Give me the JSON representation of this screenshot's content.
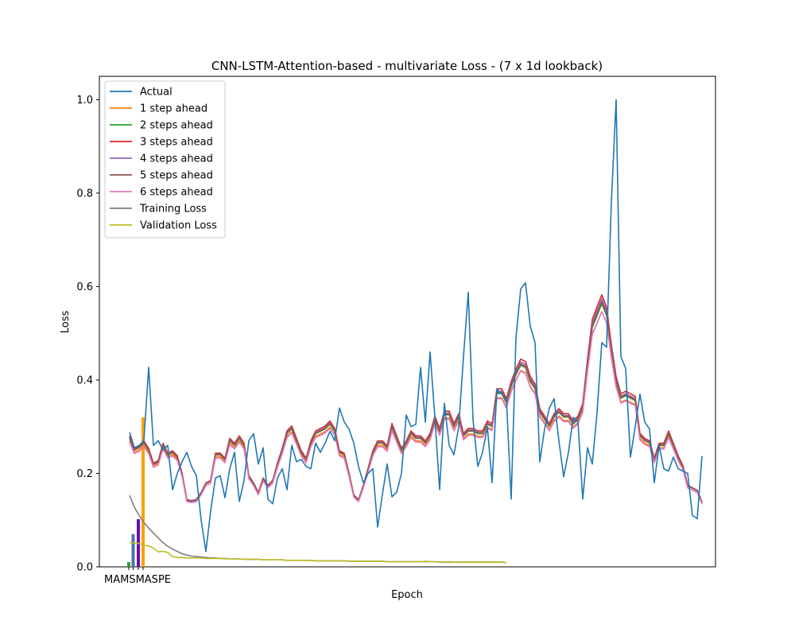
{
  "chart_data": {
    "type": "line",
    "title": "CNN-LSTM-Attention-based - multivariate Loss - (7 x 1d lookback)",
    "xlabel": "Epoch",
    "ylabel": "Loss",
    "xlim": [
      0,
      106
    ],
    "ylim": [
      0,
      1.05
    ],
    "yticks": [
      "0.0",
      "0.2",
      "0.4",
      "0.6",
      "0.8",
      "1.0"
    ],
    "ytick_values": [
      0,
      0.2,
      0.4,
      0.6,
      0.8,
      1.0
    ],
    "legend_position": "upper-left",
    "colors": {
      "actual": "#1f77b4",
      "s1": "#ff7f0e",
      "s2": "#2ca02c",
      "s3": "#d62728",
      "s4": "#9467bd",
      "s5": "#8c564b",
      "s6": "#e377c2",
      "training": "#7f7f7f",
      "validation": "#bcbd22"
    },
    "actual": {
      "name": "Actual",
      "values": [
        0.288,
        0.255,
        0.26,
        0.27,
        0.427,
        0.26,
        0.27,
        0.25,
        0.26,
        0.165,
        0.2,
        0.225,
        0.245,
        0.215,
        0.195,
        0.1,
        0.033,
        0.12,
        0.19,
        0.195,
        0.148,
        0.21,
        0.245,
        0.14,
        0.185,
        0.27,
        0.285,
        0.22,
        0.255,
        0.145,
        0.135,
        0.19,
        0.21,
        0.165,
        0.26,
        0.225,
        0.23,
        0.215,
        0.21,
        0.265,
        0.245,
        0.265,
        0.29,
        0.27,
        0.34,
        0.31,
        0.295,
        0.265,
        0.215,
        0.18,
        0.2,
        0.21,
        0.085,
        0.155,
        0.22,
        0.15,
        0.16,
        0.2,
        0.325,
        0.3,
        0.305,
        0.427,
        0.31,
        0.46,
        0.32,
        0.165,
        0.35,
        0.26,
        0.24,
        0.3,
        0.45,
        0.588,
        0.315,
        0.215,
        0.245,
        0.3,
        0.18,
        0.38,
        0.37,
        0.36,
        0.145,
        0.49,
        0.595,
        0.608,
        0.515,
        0.48,
        0.225,
        0.295,
        0.34,
        0.36,
        0.27,
        0.193,
        0.245,
        0.32,
        0.31,
        0.145,
        0.255,
        0.22,
        0.33,
        0.48,
        0.47,
        0.78,
        1.0,
        0.45,
        0.425,
        0.235,
        0.3,
        0.37,
        0.31,
        0.295,
        0.18,
        0.26,
        0.21,
        0.205,
        0.235,
        0.21,
        0.205,
        0.2,
        0.11,
        0.103,
        0.237
      ]
    },
    "base_prediction": [
      0.275,
      0.25,
      0.255,
      0.265,
      0.25,
      0.22,
      0.225,
      0.26,
      0.24,
      0.245,
      0.235,
      0.2,
      0.145,
      0.143,
      0.145,
      0.16,
      0.18,
      0.185,
      0.24,
      0.24,
      0.23,
      0.27,
      0.26,
      0.275,
      0.26,
      0.195,
      0.18,
      0.16,
      0.19,
      0.175,
      0.185,
      0.22,
      0.25,
      0.285,
      0.295,
      0.27,
      0.245,
      0.23,
      0.265,
      0.285,
      0.29,
      0.295,
      0.305,
      0.29,
      0.245,
      0.24,
      0.2,
      0.155,
      0.145,
      0.175,
      0.21,
      0.245,
      0.265,
      0.265,
      0.255,
      0.3,
      0.275,
      0.25,
      0.265,
      0.285,
      0.275,
      0.275,
      0.265,
      0.28,
      0.315,
      0.29,
      0.325,
      0.325,
      0.3,
      0.32,
      0.28,
      0.29,
      0.29,
      0.285,
      0.285,
      0.305,
      0.3,
      0.37,
      0.37,
      0.35,
      0.385,
      0.41,
      0.43,
      0.425,
      0.395,
      0.38,
      0.33,
      0.315,
      0.3,
      0.32,
      0.33,
      0.32,
      0.32,
      0.305,
      0.315,
      0.34,
      0.43,
      0.51,
      0.535,
      0.56,
      0.535,
      0.46,
      0.395,
      0.36,
      0.365,
      0.36,
      0.355,
      0.28,
      0.27,
      0.265,
      0.23,
      0.26,
      0.26,
      0.285,
      0.26,
      0.235,
      0.215,
      0.175,
      0.17,
      0.165,
      0.14
    ],
    "series": [
      {
        "name": "1 step ahead",
        "color_key": "s1",
        "scale": 0.97,
        "offset": -0.005
      },
      {
        "name": "2 steps ahead",
        "color_key": "s2",
        "scale": 1.01,
        "offset": 0.0
      },
      {
        "name": "3 steps ahead",
        "color_key": "s3",
        "scale": 1.06,
        "offset": 0.005
      },
      {
        "name": "4 steps ahead",
        "color_key": "s4",
        "scale": 1.04,
        "offset": 0.002
      },
      {
        "name": "5 steps ahead",
        "color_key": "s5",
        "scale": 1.02,
        "offset": 0.001
      },
      {
        "name": "6 steps ahead",
        "color_key": "s6",
        "scale": 0.98,
        "offset": -0.008
      }
    ],
    "training_loss": {
      "name": "Training Loss",
      "values": [
        0.153,
        0.128,
        0.11,
        0.095,
        0.083,
        0.072,
        0.062,
        0.052,
        0.044,
        0.038,
        0.033,
        0.028,
        0.025,
        0.023,
        0.022,
        0.021,
        0.02,
        0.019,
        0.019,
        0.018,
        0.018,
        0.017,
        0.017,
        0.017,
        0.016,
        0.016,
        0.016,
        0.016,
        0.015,
        0.015,
        0.015,
        0.015,
        0.015,
        0.014,
        0.014,
        0.014,
        0.014,
        0.014,
        0.014,
        0.013,
        0.013,
        0.013,
        0.013,
        0.013,
        0.013,
        0.013,
        0.012,
        0.012,
        0.012,
        0.012,
        0.012,
        0.012,
        0.012,
        0.012,
        0.011,
        0.011,
        0.011,
        0.011,
        0.011,
        0.011,
        0.011,
        0.011,
        0.011,
        0.011,
        0.011,
        0.01,
        0.01,
        0.01,
        0.01,
        0.01,
        0.01,
        0.01,
        0.01,
        0.01,
        0.01,
        0.01,
        0.01,
        0.01,
        0.01,
        0.009
      ]
    },
    "validation_loss": {
      "name": "Validation Loss",
      "values": [
        0.052,
        0.051,
        0.05,
        0.046,
        0.045,
        0.04,
        0.032,
        0.033,
        0.031,
        0.022,
        0.02,
        0.02,
        0.019,
        0.019,
        0.019,
        0.019,
        0.018,
        0.018,
        0.018,
        0.018,
        0.017,
        0.017,
        0.017,
        0.017,
        0.016,
        0.016,
        0.016,
        0.016,
        0.015,
        0.015,
        0.015,
        0.015,
        0.015,
        0.014,
        0.014,
        0.014,
        0.014,
        0.014,
        0.014,
        0.013,
        0.013,
        0.013,
        0.013,
        0.013,
        0.013,
        0.013,
        0.012,
        0.012,
        0.012,
        0.012,
        0.012,
        0.012,
        0.012,
        0.012,
        0.011,
        0.011,
        0.011,
        0.011,
        0.011,
        0.011,
        0.011,
        0.011,
        0.012,
        0.011,
        0.011,
        0.01,
        0.01,
        0.011,
        0.01,
        0.01,
        0.01,
        0.01,
        0.01,
        0.01,
        0.01,
        0.01,
        0.01,
        0.01,
        0.01,
        0.009
      ]
    },
    "metric_bars": {
      "labels": [
        "MAE",
        "MSE",
        "RMSE",
        "MAPE"
      ],
      "tick_text": "MAMSMASPE",
      "values": [
        0.01,
        0.07,
        0.102,
        0.32
      ],
      "colors": [
        "#2ca02c",
        "#4c72b0",
        "#6a0dad",
        "#ff9f00"
      ]
    }
  }
}
